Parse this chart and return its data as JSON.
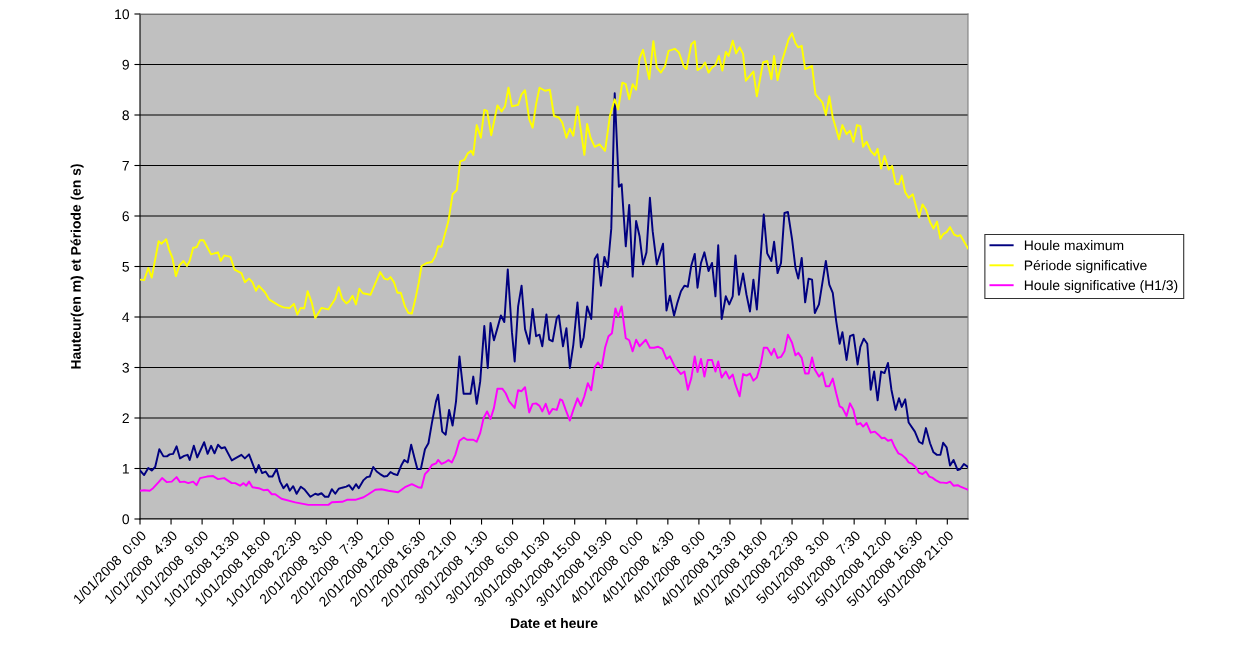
{
  "chart_data": {
    "type": "line",
    "xlabel": "Date et heure",
    "ylabel": "Hauteur(en m) et Période (en s)",
    "xlim": [
      "2008-01-01T00:00",
      "2008-01-06T00:00"
    ],
    "ylim": [
      0,
      10
    ],
    "yticks": [
      0,
      1,
      2,
      3,
      4,
      5,
      6,
      7,
      8,
      9,
      10
    ],
    "xticks": [
      {
        "value": "2008-01-01T00:00",
        "label": "1/01/2008  0:00"
      },
      {
        "value": "2008-01-01T04:30",
        "label": "1/01/2008  4:30"
      },
      {
        "value": "2008-01-01T09:00",
        "label": "1/01/2008  9:00"
      },
      {
        "value": "2008-01-01T13:30",
        "label": "1/01/2008 13:30"
      },
      {
        "value": "2008-01-01T18:00",
        "label": "1/01/2008 18:00"
      },
      {
        "value": "2008-01-01T22:30",
        "label": "1/01/2008 22:30"
      },
      {
        "value": "2008-01-02T03:00",
        "label": "2/01/2008  3:00"
      },
      {
        "value": "2008-01-02T07:30",
        "label": "2/01/2008  7:30"
      },
      {
        "value": "2008-01-02T12:00",
        "label": "2/01/2008 12:00"
      },
      {
        "value": "2008-01-02T16:30",
        "label": "2/01/2008 16:30"
      },
      {
        "value": "2008-01-02T21:00",
        "label": "2/01/2008 21:00"
      },
      {
        "value": "2008-01-03T01:30",
        "label": "3/01/2008  1:30"
      },
      {
        "value": "2008-01-03T06:00",
        "label": "3/01/2008  6:00"
      },
      {
        "value": "2008-01-03T10:30",
        "label": "3/01/2008 10:30"
      },
      {
        "value": "2008-01-03T15:00",
        "label": "3/01/2008 15:00"
      },
      {
        "value": "2008-01-03T19:30",
        "label": "3/01/2008 19:30"
      },
      {
        "value": "2008-01-04T00:00",
        "label": "4/01/2008  0:00"
      },
      {
        "value": "2008-01-04T04:30",
        "label": "4/01/2008  4:30"
      },
      {
        "value": "2008-01-04T09:00",
        "label": "4/01/2008  9:00"
      },
      {
        "value": "2008-01-04T13:30",
        "label": "4/01/2008 13:30"
      },
      {
        "value": "2008-01-04T18:00",
        "label": "4/01/2008 18:00"
      },
      {
        "value": "2008-01-04T22:30",
        "label": "4/01/2008 22:30"
      },
      {
        "value": "2008-01-05T03:00",
        "label": "5/01/2008  3:00"
      },
      {
        "value": "2008-01-05T07:30",
        "label": "5/01/2008  7:30"
      },
      {
        "value": "2008-01-05T12:00",
        "label": "5/01/2008 12:00"
      },
      {
        "value": "2008-01-05T16:30",
        "label": "5/01/2008 16:30"
      },
      {
        "value": "2008-01-05T21:00",
        "label": "5/01/2008 21:00"
      }
    ],
    "grid": "y",
    "legend": "right",
    "marker": "none",
    "line_style": "solid",
    "series": [
      {
        "name": "Houle maximum",
        "color": "#000080",
        "x": [
          "2008-01-01T00:00",
          "2008-01-01T00:36",
          "2008-01-01T01:12",
          "2008-01-01T01:42",
          "2008-01-01T02:12",
          "2008-01-01T02:48",
          "2008-01-01T03:24",
          "2008-01-01T03:54",
          "2008-01-01T04:18",
          "2008-01-01T04:48",
          "2008-01-01T05:18",
          "2008-01-01T05:48",
          "2008-01-01T06:24",
          "2008-01-01T06:54",
          "2008-01-01T07:12",
          "2008-01-01T07:48",
          "2008-01-01T08:18",
          "2008-01-01T09:18",
          "2008-01-01T09:48",
          "2008-01-01T10:18",
          "2008-01-01T10:48",
          "2008-01-01T11:18",
          "2008-01-01T11:48",
          "2008-01-01T12:18",
          "2008-01-01T13:18",
          "2008-01-01T13:48",
          "2008-01-01T14:42",
          "2008-01-01T15:12",
          "2008-01-01T15:48",
          "2008-01-01T16:18",
          "2008-01-01T16:48",
          "2008-01-01T17:12",
          "2008-01-01T17:42",
          "2008-01-01T18:12",
          "2008-01-01T18:42",
          "2008-01-01T19:12",
          "2008-01-01T19:48",
          "2008-01-01T20:18",
          "2008-01-01T20:48",
          "2008-01-01T21:18",
          "2008-01-01T21:42",
          "2008-01-01T22:12",
          "2008-01-01T22:42",
          "2008-01-01T23:18",
          "2008-01-01T23:48",
          "2008-01-02T00:42",
          "2008-01-02T01:24",
          "2008-01-02T01:48",
          "2008-01-02T02:18",
          "2008-01-02T02:48",
          "2008-01-02T03:18",
          "2008-01-02T03:48",
          "2008-01-02T04:18",
          "2008-01-02T04:48",
          "2008-01-02T05:18",
          "2008-01-02T05:54",
          "2008-01-02T06:18",
          "2008-01-02T06:48",
          "2008-01-02T07:18",
          "2008-01-02T07:42",
          "2008-01-02T08:24",
          "2008-01-02T08:54",
          "2008-01-02T09:18",
          "2008-01-02T09:48",
          "2008-01-02T10:18",
          "2008-01-02T10:48",
          "2008-01-02T11:24",
          "2008-01-02T11:48",
          "2008-01-02T12:18",
          "2008-01-02T12:48",
          "2008-01-02T13:18",
          "2008-01-02T13:54",
          "2008-01-02T14:18",
          "2008-01-02T14:48",
          "2008-01-02T15:18",
          "2008-01-02T15:48",
          "2008-01-02T16:12",
          "2008-01-02T16:42",
          "2008-01-02T17:18",
          "2008-01-02T17:48",
          "2008-01-02T18:18",
          "2008-01-02T18:54",
          "2008-01-02T19:12",
          "2008-01-02T19:48",
          "2008-01-02T20:18",
          "2008-01-02T20:48",
          "2008-01-02T21:18",
          "2008-01-02T21:48",
          "2008-01-02T22:18",
          "2008-01-02T22:54",
          "2008-01-02T23:54",
          "2008-01-03T00:18",
          "2008-01-03T00:48",
          "2008-01-03T01:18",
          "2008-01-03T01:54",
          "2008-01-03T02:24",
          "2008-01-03T02:48",
          "2008-01-03T03:18",
          "2008-01-03T03:48",
          "2008-01-03T04:18",
          "2008-01-03T04:48",
          "2008-01-03T05:18",
          "2008-01-03T05:54",
          "2008-01-03T06:18",
          "2008-01-03T06:48",
          "2008-01-03T07:18",
          "2008-01-03T07:48",
          "2008-01-03T08:24",
          "2008-01-03T08:54",
          "2008-01-03T09:24",
          "2008-01-03T09:54",
          "2008-01-03T10:18",
          "2008-01-03T10:54",
          "2008-01-03T11:18",
          "2008-01-03T11:48",
          "2008-01-03T12:24",
          "2008-01-03T12:42",
          "2008-01-03T13:18",
          "2008-01-03T13:48",
          "2008-01-03T14:18",
          "2008-01-03T14:48",
          "2008-01-03T15:24",
          "2008-01-03T15:54",
          "2008-01-03T16:18",
          "2008-01-03T16:48",
          "2008-01-03T17:24",
          "2008-01-03T17:54",
          "2008-01-03T18:18",
          "2008-01-03T18:48",
          "2008-01-03T19:18",
          "2008-01-03T19:48",
          "2008-01-03T20:18",
          "2008-01-03T20:48",
          "2008-01-03T21:24",
          "2008-01-03T21:48",
          "2008-01-03T22:24",
          "2008-01-03T22:54",
          "2008-01-03T23:24",
          "2008-01-03T23:54",
          "2008-01-04T00:24",
          "2008-01-04T00:54",
          "2008-01-04T01:24",
          "2008-01-04T01:54",
          "2008-01-04T02:18",
          "2008-01-04T02:54",
          "2008-01-04T03:48",
          "2008-01-04T04:18",
          "2008-01-04T04:48",
          "2008-01-04T05:24",
          "2008-01-04T05:54",
          "2008-01-04T06:24",
          "2008-01-04T06:54",
          "2008-01-04T07:24",
          "2008-01-04T07:54",
          "2008-01-04T08:24",
          "2008-01-04T08:48",
          "2008-01-04T09:18",
          "2008-01-04T09:48",
          "2008-01-04T10:24",
          "2008-01-04T10:54",
          "2008-01-04T11:24",
          "2008-01-04T11:48",
          "2008-01-04T12:18",
          "2008-01-04T12:54",
          "2008-01-04T13:24",
          "2008-01-04T13:54",
          "2008-01-04T14:18",
          "2008-01-04T14:48",
          "2008-01-04T15:24",
          "2008-01-04T15:54",
          "2008-01-04T16:24",
          "2008-01-04T16:54",
          "2008-01-04T17:24",
          "2008-01-04T18:00",
          "2008-01-04T18:24",
          "2008-01-04T18:54",
          "2008-01-04T19:30",
          "2008-01-04T19:54",
          "2008-01-04T20:24",
          "2008-01-04T20:54",
          "2008-01-04T21:24",
          "2008-01-04T21:54",
          "2008-01-04T22:30",
          "2008-01-04T23:00",
          "2008-01-04T23:24",
          "2008-01-04T23:54",
          "2008-01-05T00:24",
          "2008-01-05T00:54",
          "2008-01-05T01:24",
          "2008-01-05T01:48",
          "2008-01-05T02:24",
          "2008-01-05T02:54",
          "2008-01-05T03:24",
          "2008-01-05T03:54",
          "2008-01-05T04:24",
          "2008-01-05T04:54",
          "2008-01-05T05:24",
          "2008-01-05T05:48",
          "2008-01-05T06:24",
          "2008-01-05T06:54",
          "2008-01-05T07:24",
          "2008-01-05T08:00",
          "2008-01-05T08:24",
          "2008-01-05T08:54",
          "2008-01-05T09:24",
          "2008-01-05T09:54",
          "2008-01-05T10:24",
          "2008-01-05T10:54",
          "2008-01-05T11:24",
          "2008-01-05T11:54",
          "2008-01-05T12:24",
          "2008-01-05T12:54",
          "2008-01-05T13:30",
          "2008-01-05T14:00",
          "2008-01-05T14:24",
          "2008-01-05T14:54",
          "2008-01-05T15:24",
          "2008-01-05T16:18",
          "2008-01-05T16:54",
          "2008-01-05T17:24",
          "2008-01-05T17:54",
          "2008-01-05T18:30",
          "2008-01-05T19:00",
          "2008-01-05T19:30",
          "2008-01-05T20:00",
          "2008-01-05T20:24",
          "2008-01-05T20:54",
          "2008-01-05T21:24",
          "2008-01-05T21:54",
          "2008-01-05T22:30",
          "2008-01-05T22:54",
          "2008-01-05T23:24",
          "2008-01-06T00:00"
        ],
        "values": [
          0.96,
          0.87,
          1.01,
          0.96,
          1.03,
          1.38,
          1.24,
          1.24,
          1.28,
          1.29,
          1.44,
          1.2,
          1.25,
          1.27,
          1.17,
          1.45,
          1.22,
          1.52,
          1.29,
          1.45,
          1.3,
          1.47,
          1.4,
          1.42,
          1.16,
          1.2,
          1.27,
          1.2,
          1.28,
          1.1,
          0.92,
          1.07,
          0.91,
          0.94,
          0.84,
          0.84,
          0.99,
          0.74,
          0.61,
          0.69,
          0.56,
          0.65,
          0.5,
          0.64,
          0.59,
          0.44,
          0.5,
          0.48,
          0.51,
          0.44,
          0.44,
          0.59,
          0.5,
          0.6,
          0.62,
          0.64,
          0.67,
          0.58,
          0.69,
          0.61,
          0.77,
          0.83,
          0.84,
          1.03,
          0.94,
          0.89,
          0.84,
          0.85,
          0.93,
          0.89,
          0.87,
          1.07,
          1.17,
          1.12,
          1.47,
          1.2,
          0.99,
          0.99,
          1.38,
          1.5,
          1.9,
          2.33,
          2.46,
          1.73,
          1.67,
          2.16,
          1.85,
          2.33,
          3.22,
          2.48,
          2.48,
          2.82,
          2.28,
          2.72,
          3.82,
          2.99,
          3.88,
          3.54,
          3.78,
          4.03,
          3.9,
          4.94,
          3.7,
          3.12,
          4.21,
          4.62,
          3.76,
          3.47,
          4.16,
          3.62,
          3.65,
          3.42,
          4.05,
          3.55,
          3.52,
          3.98,
          4.03,
          3.42,
          3.78,
          2.99,
          3.45,
          4.29,
          3.4,
          3.6,
          4.21,
          3.96,
          5.15,
          5.24,
          4.62,
          5.19,
          4.99,
          5.75,
          8.43,
          6.58,
          6.63,
          5.4,
          6.22,
          4.8,
          5.9,
          5.6,
          5.04,
          5.28,
          6.36,
          5.7,
          5.04,
          5.45,
          4.13,
          4.42,
          4.03,
          4.29,
          4.51,
          4.62,
          4.6,
          5.02,
          5.25,
          4.58,
          5.07,
          5.28,
          4.91,
          5.07,
          4.41,
          5.42,
          3.96,
          4.41,
          4.25,
          4.41,
          5.22,
          4.44,
          4.86,
          4.44,
          4.11,
          4.74,
          4.15,
          5.28,
          6.03,
          5.26,
          5.11,
          5.49,
          4.87,
          5.07,
          6.06,
          6.08,
          5.54,
          4.97,
          4.76,
          5.17,
          4.29,
          4.76,
          4.74,
          4.08,
          4.25,
          4.68,
          5.11,
          4.64,
          4.48,
          3.92,
          3.47,
          3.7,
          3.15,
          3.62,
          3.65,
          3.06,
          3.41,
          3.57,
          3.47,
          2.56,
          2.92,
          2.35,
          2.92,
          2.89,
          3.09,
          2.56,
          2.16,
          2.39,
          2.22,
          2.37,
          1.91,
          1.73,
          1.53,
          1.49,
          1.8,
          1.5,
          1.32,
          1.27,
          1.27,
          1.51,
          1.42,
          1.06,
          1.17,
          0.97,
          0.99,
          1.09,
          1.03
        ]
      },
      {
        "name": "Période significative",
        "color": "#ffff00",
        "x": [
          "2008-01-01T00:00",
          "2008-01-01T00:36",
          "2008-01-01T01:12",
          "2008-01-01T01:42",
          "2008-01-01T02:42",
          "2008-01-01T03:06",
          "2008-01-01T03:48",
          "2008-01-01T04:12",
          "2008-01-01T04:42",
          "2008-01-01T05:12",
          "2008-01-01T05:42",
          "2008-01-01T06:18",
          "2008-01-01T06:48",
          "2008-01-01T07:12",
          "2008-01-01T07:42",
          "2008-01-01T08:12",
          "2008-01-01T08:42",
          "2008-01-01T09:12",
          "2008-01-01T10:18",
          "2008-01-01T11:18",
          "2008-01-01T11:42",
          "2008-01-01T12:12",
          "2008-01-01T13:06",
          "2008-01-01T13:42",
          "2008-01-01T14:42",
          "2008-01-01T15:12",
          "2008-01-01T15:48",
          "2008-01-01T16:18",
          "2008-01-01T16:48",
          "2008-01-01T17:12",
          "2008-01-01T18:06",
          "2008-01-01T18:42",
          "2008-01-01T20:06",
          "2008-01-01T20:48",
          "2008-01-01T21:42",
          "2008-01-01T22:18",
          "2008-01-01T22:48",
          "2008-01-01T23:18",
          "2008-01-01T23:48",
          "2008-01-02T00:18",
          "2008-01-02T00:54",
          "2008-01-02T01:24",
          "2008-01-02T02:18",
          "2008-01-02T03:18",
          "2008-01-02T04:18",
          "2008-01-02T04:48",
          "2008-01-02T05:18",
          "2008-01-02T05:54",
          "2008-01-02T06:18",
          "2008-01-02T06:48",
          "2008-01-02T07:18",
          "2008-01-02T07:48",
          "2008-01-02T08:18",
          "2008-01-02T09:24",
          "2008-01-02T10:48",
          "2008-01-02T11:24",
          "2008-01-02T11:54",
          "2008-01-02T12:18",
          "2008-01-02T12:48",
          "2008-01-02T13:18",
          "2008-01-02T13:48",
          "2008-01-02T14:24",
          "2008-01-02T14:54",
          "2008-01-02T15:24",
          "2008-01-02T15:54",
          "2008-01-02T16:24",
          "2008-01-02T16:48",
          "2008-01-02T17:36",
          "2008-01-02T18:18",
          "2008-01-02T18:48",
          "2008-01-02T19:12",
          "2008-01-02T19:42",
          "2008-01-02T20:42",
          "2008-01-02T21:18",
          "2008-01-02T21:54",
          "2008-01-02T22:24",
          "2008-01-02T23:00",
          "2008-01-02T23:30",
          "2008-01-03T00:00",
          "2008-01-03T00:18",
          "2008-01-03T00:48",
          "2008-01-03T01:24",
          "2008-01-03T01:54",
          "2008-01-03T02:18",
          "2008-01-03T02:54",
          "2008-01-03T03:48",
          "2008-01-03T04:24",
          "2008-01-03T04:54",
          "2008-01-03T05:24",
          "2008-01-03T05:54",
          "2008-01-03T06:48",
          "2008-01-03T07:18",
          "2008-01-03T07:48",
          "2008-01-03T08:24",
          "2008-01-03T08:54",
          "2008-01-03T09:24",
          "2008-01-03T09:54",
          "2008-01-03T10:42",
          "2008-01-03T11:24",
          "2008-01-03T12:00",
          "2008-01-03T12:42",
          "2008-01-03T13:12",
          "2008-01-03T13:48",
          "2008-01-03T14:18",
          "2008-01-03T14:48",
          "2008-01-03T15:24",
          "2008-01-03T16:24",
          "2008-01-03T16:48",
          "2008-01-03T17:18",
          "2008-01-03T17:54",
          "2008-01-03T18:36",
          "2008-01-03T19:24",
          "2008-01-03T20:06",
          "2008-01-03T20:48",
          "2008-01-03T21:18",
          "2008-01-03T21:54",
          "2008-01-03T22:24",
          "2008-01-03T22:54",
          "2008-01-03T23:24",
          "2008-01-03T23:54",
          "2008-01-04T00:24",
          "2008-01-04T00:54",
          "2008-01-04T01:48",
          "2008-01-04T02:24",
          "2008-01-04T02:54",
          "2008-01-04T03:30",
          "2008-01-04T04:06",
          "2008-01-04T04:36",
          "2008-01-04T05:30",
          "2008-01-04T06:06",
          "2008-01-04T06:48",
          "2008-01-04T07:12",
          "2008-01-04T07:54",
          "2008-01-04T08:24",
          "2008-01-04T08:48",
          "2008-01-04T09:24",
          "2008-01-04T09:54",
          "2008-01-04T10:24",
          "2008-01-04T10:54",
          "2008-01-04T11:24",
          "2008-01-04T11:54",
          "2008-01-04T12:24",
          "2008-01-04T12:54",
          "2008-01-04T13:18",
          "2008-01-04T13:54",
          "2008-01-04T14:24",
          "2008-01-04T14:54",
          "2008-01-04T15:24",
          "2008-01-04T15:48",
          "2008-01-04T16:54",
          "2008-01-04T17:24",
          "2008-01-04T18:18",
          "2008-01-04T18:54",
          "2008-01-04T19:30",
          "2008-01-04T19:54",
          "2008-01-04T20:24",
          "2008-01-04T21:00",
          "2008-01-04T21:30",
          "2008-01-04T22:00",
          "2008-01-04T22:30",
          "2008-01-04T23:00",
          "2008-01-04T23:24",
          "2008-01-04T23:54",
          "2008-01-05T00:24",
          "2008-01-05T01:24",
          "2008-01-05T01:54",
          "2008-01-05T02:24",
          "2008-01-05T02:54",
          "2008-01-05T03:24",
          "2008-01-05T03:54",
          "2008-01-05T04:24",
          "2008-01-05T04:54",
          "2008-01-05T05:18",
          "2008-01-05T05:48",
          "2008-01-05T06:24",
          "2008-01-05T06:54",
          "2008-01-05T07:24",
          "2008-01-05T07:54",
          "2008-01-05T08:24",
          "2008-01-05T08:48",
          "2008-01-05T09:18",
          "2008-01-05T09:54",
          "2008-01-05T10:30",
          "2008-01-05T10:54",
          "2008-01-05T11:24",
          "2008-01-05T11:54",
          "2008-01-05T12:30",
          "2008-01-05T13:00",
          "2008-01-05T13:30",
          "2008-01-05T14:00",
          "2008-01-05T14:24",
          "2008-01-05T14:54",
          "2008-01-05T15:24",
          "2008-01-05T16:00",
          "2008-01-05T16:54",
          "2008-01-05T17:24",
          "2008-01-05T17:54",
          "2008-01-05T18:30",
          "2008-01-05T19:00",
          "2008-01-05T19:30",
          "2008-01-05T20:00",
          "2008-01-05T20:24",
          "2008-01-05T20:54",
          "2008-01-05T21:24",
          "2008-01-05T22:00",
          "2008-01-05T22:30",
          "2008-01-05T22:54",
          "2008-01-06T00:00"
        ],
        "values": [
          4.74,
          4.73,
          4.97,
          4.78,
          5.5,
          5.45,
          5.54,
          5.34,
          5.17,
          4.81,
          5.02,
          5.11,
          5.01,
          5.11,
          5.37,
          5.38,
          5.52,
          5.52,
          5.24,
          5.28,
          5.11,
          5.22,
          5.19,
          4.94,
          4.87,
          4.69,
          4.76,
          4.69,
          4.52,
          4.62,
          4.49,
          4.35,
          4.23,
          4.19,
          4.18,
          4.26,
          4.05,
          4.18,
          4.17,
          4.51,
          4.28,
          3.98,
          4.18,
          4.15,
          4.36,
          4.59,
          4.36,
          4.27,
          4.31,
          4.42,
          4.25,
          4.56,
          4.47,
          4.44,
          4.89,
          4.76,
          4.74,
          4.79,
          4.69,
          4.48,
          4.48,
          4.21,
          4.08,
          4.07,
          4.35,
          4.68,
          5.01,
          5.07,
          5.09,
          5.21,
          5.4,
          5.39,
          5.9,
          6.43,
          6.51,
          7.08,
          7.11,
          7.24,
          7.29,
          7.21,
          7.8,
          7.55,
          8.1,
          8.08,
          7.6,
          8.19,
          8.07,
          8.17,
          8.54,
          8.17,
          8.2,
          8.41,
          8.49,
          7.92,
          7.75,
          8.21,
          8.54,
          8.48,
          8.5,
          7.98,
          7.95,
          7.85,
          7.55,
          7.73,
          7.59,
          8.17,
          7.21,
          7.82,
          7.55,
          7.37,
          7.42,
          7.29,
          7.98,
          8.31,
          8.11,
          8.64,
          8.61,
          8.31,
          8.61,
          8.5,
          9.12,
          9.29,
          8.71,
          9.46,
          8.94,
          8.84,
          8.97,
          9.27,
          9.31,
          9.24,
          8.97,
          8.91,
          9.4,
          9.46,
          8.89,
          8.94,
          9.04,
          8.84,
          8.94,
          8.99,
          9.17,
          8.88,
          9.25,
          9.17,
          9.47,
          9.22,
          9.34,
          9.21,
          8.68,
          8.86,
          8.37,
          9.04,
          9.07,
          8.71,
          9.17,
          8.69,
          9.05,
          9.27,
          9.5,
          9.62,
          9.42,
          9.34,
          9.37,
          8.91,
          8.97,
          8.41,
          8.33,
          8.25,
          8.0,
          8.37,
          7.95,
          7.72,
          7.52,
          7.8,
          7.62,
          7.69,
          7.47,
          7.8,
          7.78,
          7.37,
          7.47,
          7.29,
          7.2,
          7.33,
          6.94,
          7.19,
          6.92,
          6.99,
          6.64,
          6.63,
          6.8,
          6.47,
          6.36,
          6.43,
          5.97,
          6.23,
          6.13,
          5.88,
          5.75,
          5.89,
          5.55,
          5.64,
          5.68,
          5.78,
          5.63,
          5.6,
          5.62,
          5.36
        ]
      },
      {
        "name": "Houle significative (H1/3)",
        "color": "#ff00ff",
        "x": [
          "2008-01-01T00:00",
          "2008-01-01T00:36",
          "2008-01-01T01:24",
          "2008-01-01T01:54",
          "2008-01-01T02:42",
          "2008-01-01T03:12",
          "2008-01-01T03:54",
          "2008-01-01T04:36",
          "2008-01-01T05:18",
          "2008-01-01T05:48",
          "2008-01-01T06:24",
          "2008-01-01T07:00",
          "2008-01-01T07:42",
          "2008-01-01T08:12",
          "2008-01-01T08:42",
          "2008-01-01T09:42",
          "2008-01-01T10:36",
          "2008-01-01T11:18",
          "2008-01-01T12:12",
          "2008-01-01T13:18",
          "2008-01-01T13:48",
          "2008-01-01T14:30",
          "2008-01-01T15:00",
          "2008-01-01T15:24",
          "2008-01-01T15:48",
          "2008-01-01T16:18",
          "2008-01-01T17:12",
          "2008-01-01T17:54",
          "2008-01-01T18:30",
          "2008-01-01T19:06",
          "2008-01-01T19:36",
          "2008-01-01T20:30",
          "2008-01-01T22:30",
          "2008-01-02T00:24",
          "2008-01-02T03:18",
          "2008-01-02T03:48",
          "2008-01-02T05:18",
          "2008-01-02T06:00",
          "2008-01-02T07:12",
          "2008-01-02T08:24",
          "2008-01-02T09:06",
          "2008-01-02T10:06",
          "2008-01-02T11:00",
          "2008-01-02T12:00",
          "2008-01-02T13:24",
          "2008-01-02T14:24",
          "2008-01-02T15:24",
          "2008-01-02T16:18",
          "2008-01-02T16:48",
          "2008-01-02T17:18",
          "2008-01-02T17:48",
          "2008-01-02T18:18",
          "2008-01-02T18:54",
          "2008-01-02T19:12",
          "2008-01-02T19:42",
          "2008-01-02T20:12",
          "2008-01-02T20:42",
          "2008-01-02T21:12",
          "2008-01-02T21:42",
          "2008-01-02T22:18",
          "2008-01-02T22:54",
          "2008-01-02T23:24",
          "2008-01-03T00:18",
          "2008-01-03T00:48",
          "2008-01-03T01:18",
          "2008-01-03T01:48",
          "2008-01-03T02:18",
          "2008-01-03T02:48",
          "2008-01-03T03:18",
          "2008-01-03T03:48",
          "2008-01-03T04:30",
          "2008-01-03T05:00",
          "2008-01-03T05:30",
          "2008-01-03T06:18",
          "2008-01-03T06:48",
          "2008-01-03T07:18",
          "2008-01-03T07:48",
          "2008-01-03T08:24",
          "2008-01-03T08:54",
          "2008-01-03T09:24",
          "2008-01-03T09:54",
          "2008-01-03T10:18",
          "2008-01-03T10:48",
          "2008-01-03T11:18",
          "2008-01-03T11:48",
          "2008-01-03T12:24",
          "2008-01-03T12:54",
          "2008-01-03T13:12",
          "2008-01-03T13:42",
          "2008-01-03T14:18",
          "2008-01-03T14:48",
          "2008-01-03T15:24",
          "2008-01-03T15:54",
          "2008-01-03T16:24",
          "2008-01-03T16:54",
          "2008-01-03T17:24",
          "2008-01-03T17:54",
          "2008-01-03T18:24",
          "2008-01-03T18:54",
          "2008-01-03T19:24",
          "2008-01-03T19:54",
          "2008-01-03T20:24",
          "2008-01-03T20:54",
          "2008-01-03T21:18",
          "2008-01-03T21:48",
          "2008-01-03T22:24",
          "2008-01-03T22:54",
          "2008-01-03T23:24",
          "2008-01-03T23:54",
          "2008-01-04T00:24",
          "2008-01-04T01:18",
          "2008-01-04T01:54",
          "2008-01-04T02:30",
          "2008-01-04T03:06",
          "2008-01-04T03:42",
          "2008-01-04T04:18",
          "2008-01-04T04:48",
          "2008-01-04T05:30",
          "2008-01-04T06:24",
          "2008-01-04T06:54",
          "2008-01-04T07:24",
          "2008-01-04T07:54",
          "2008-01-04T08:24",
          "2008-01-04T08:48",
          "2008-01-04T09:18",
          "2008-01-04T09:48",
          "2008-01-04T10:18",
          "2008-01-04T10:54",
          "2008-01-04T11:24",
          "2008-01-04T11:48",
          "2008-01-04T12:18",
          "2008-01-04T12:54",
          "2008-01-04T13:24",
          "2008-01-04T13:54",
          "2008-01-04T14:18",
          "2008-01-04T14:54",
          "2008-01-04T15:24",
          "2008-01-04T15:54",
          "2008-01-04T16:24",
          "2008-01-04T16:54",
          "2008-01-04T17:24",
          "2008-01-04T18:00",
          "2008-01-04T18:24",
          "2008-01-04T18:54",
          "2008-01-04T19:30",
          "2008-01-04T19:54",
          "2008-01-04T20:24",
          "2008-01-04T20:54",
          "2008-01-04T21:24",
          "2008-01-04T21:54",
          "2008-01-04T22:30",
          "2008-01-04T23:00",
          "2008-01-04T23:24",
          "2008-01-04T23:54",
          "2008-01-05T00:24",
          "2008-01-05T00:54",
          "2008-01-05T01:24",
          "2008-01-05T01:48",
          "2008-01-05T02:24",
          "2008-01-05T02:54",
          "2008-01-05T03:24",
          "2008-01-05T03:54",
          "2008-01-05T04:24",
          "2008-01-05T04:54",
          "2008-01-05T05:24",
          "2008-01-05T05:48",
          "2008-01-05T06:24",
          "2008-01-05T06:54",
          "2008-01-05T07:24",
          "2008-01-05T07:54",
          "2008-01-05T08:24",
          "2008-01-05T08:48",
          "2008-01-05T09:18",
          "2008-01-05T09:54",
          "2008-01-05T10:30",
          "2008-01-05T11:00",
          "2008-01-05T11:30",
          "2008-01-05T11:54",
          "2008-01-05T12:24",
          "2008-01-05T12:54",
          "2008-01-05T13:24",
          "2008-01-05T13:54",
          "2008-01-05T14:24",
          "2008-01-05T15:00",
          "2008-01-05T15:24",
          "2008-01-05T15:54",
          "2008-01-05T16:24",
          "2008-01-05T16:54",
          "2008-01-05T17:24",
          "2008-01-05T17:54",
          "2008-01-05T18:24",
          "2008-01-05T18:48",
          "2008-01-05T19:18",
          "2008-01-05T20:00",
          "2008-01-05T20:24",
          "2008-01-05T20:54",
          "2008-01-05T21:24",
          "2008-01-05T21:54",
          "2008-01-05T22:30",
          "2008-01-05T22:54",
          "2008-01-06T00:00"
        ],
        "values": [
          0.56,
          0.57,
          0.56,
          0.61,
          0.73,
          0.81,
          0.73,
          0.74,
          0.83,
          0.73,
          0.74,
          0.71,
          0.74,
          0.67,
          0.81,
          0.84,
          0.85,
          0.79,
          0.81,
          0.71,
          0.71,
          0.66,
          0.71,
          0.66,
          0.74,
          0.63,
          0.61,
          0.57,
          0.58,
          0.49,
          0.49,
          0.4,
          0.33,
          0.28,
          0.28,
          0.33,
          0.34,
          0.38,
          0.38,
          0.43,
          0.49,
          0.58,
          0.59,
          0.56,
          0.53,
          0.63,
          0.69,
          0.63,
          0.62,
          0.89,
          0.96,
          1.07,
          1.1,
          1.17,
          1.09,
          1.12,
          1.17,
          1.12,
          1.27,
          1.55,
          1.61,
          1.57,
          1.57,
          1.53,
          1.7,
          2.0,
          2.13,
          1.98,
          2.2,
          2.58,
          2.58,
          2.49,
          2.33,
          2.2,
          2.55,
          2.53,
          2.61,
          2.11,
          2.28,
          2.29,
          2.24,
          2.13,
          2.28,
          2.08,
          2.18,
          2.16,
          2.37,
          2.35,
          2.16,
          1.95,
          2.16,
          2.39,
          2.24,
          2.43,
          2.69,
          2.55,
          3.01,
          3.1,
          2.99,
          3.39,
          3.62,
          3.68,
          4.17,
          4.01,
          4.21,
          3.58,
          3.54,
          3.32,
          3.55,
          3.42,
          3.55,
          3.39,
          3.39,
          3.41,
          3.37,
          3.17,
          3.22,
          3.02,
          2.87,
          2.92,
          2.56,
          2.79,
          3.22,
          2.91,
          3.17,
          2.82,
          3.15,
          3.15,
          2.92,
          3.12,
          2.8,
          2.92,
          2.78,
          2.86,
          2.66,
          2.43,
          2.87,
          2.84,
          2.88,
          2.74,
          2.8,
          3.09,
          3.39,
          3.39,
          3.25,
          3.37,
          3.19,
          3.21,
          3.32,
          3.65,
          3.49,
          3.24,
          3.29,
          3.19,
          2.88,
          2.88,
          3.2,
          2.96,
          2.82,
          2.9,
          2.63,
          2.63,
          2.78,
          2.49,
          2.23,
          2.2,
          2.04,
          2.29,
          2.16,
          1.87,
          1.9,
          1.83,
          1.9,
          1.71,
          1.73,
          1.67,
          1.6,
          1.61,
          1.55,
          1.57,
          1.42,
          1.3,
          1.27,
          1.2,
          1.12,
          1.09,
          1.03,
          0.92,
          0.89,
          0.94,
          0.84,
          0.82,
          0.77,
          0.72,
          0.72,
          0.71,
          0.74,
          0.66,
          0.67,
          0.64,
          0.58
        ]
      }
    ]
  }
}
